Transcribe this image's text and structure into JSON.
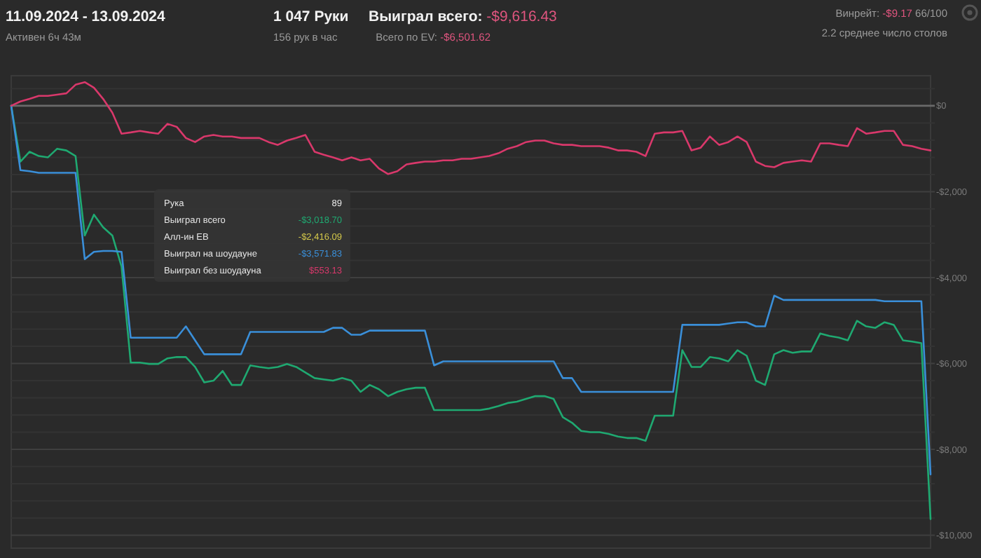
{
  "chart_data": {
    "type": "line",
    "title": "11.09.2024 - 13.09.2024",
    "subtitle": "Активен 6ч 43м",
    "annotations": [
      "1 047 Руки",
      "156 рук в час",
      "Выиграл всего: -$9,616.43",
      "Всего по EV: -$6,501.62",
      "Винрейт: -$9.17 66/100",
      "2.2 среднее число столов",
      "Рука",
      "89",
      "Выиграл всего",
      "-$3,018.70",
      "Алл-ин ЕВ",
      "-$2,416.09",
      "Выиграл на шоудауне",
      "-$3,571.83",
      "Выиграл без шоудауна",
      "$553.13"
    ],
    "categories": [
      null,
      null,
      null,
      null,
      null,
      null,
      null,
      null,
      null,
      null,
      null,
      null,
      null,
      null,
      null,
      null,
      null,
      null,
      null,
      null,
      null,
      null,
      null,
      null,
      null,
      null,
      null,
      null,
      null,
      null,
      null,
      null,
      null,
      null,
      null,
      null,
      null,
      null,
      null,
      null,
      null,
      null,
      null,
      null,
      null,
      null,
      null,
      null,
      null,
      null,
      null,
      null,
      null,
      null,
      null,
      null,
      null,
      null,
      null,
      null,
      null,
      null,
      null,
      null,
      null,
      null,
      null,
      null,
      null,
      null,
      null,
      null,
      null,
      null,
      null,
      null,
      null,
      null,
      null,
      null,
      null,
      null,
      null,
      null,
      null,
      null,
      null,
      null,
      null,
      null,
      null,
      null,
      null,
      null,
      null,
      null,
      null,
      null,
      null,
      null,
      null
    ],
    "series": [
      {
        "color": "#1fa971",
        "values": [
          0,
          -1300,
          -1070,
          -1170,
          -1200,
          -1000,
          -1040,
          -1170,
          -3020,
          -2535,
          -2830,
          -3020,
          -3740,
          -5980,
          -5980,
          -6010,
          -6010,
          -5880,
          -5850,
          -5850,
          -6080,
          -6440,
          -6400,
          -6175,
          -6500,
          -6500,
          -6045,
          -6080,
          -6110,
          -6080,
          -6010,
          -6080,
          -6210,
          -6340,
          -6370,
          -6400,
          -6340,
          -6400,
          -6660,
          -6500,
          -6600,
          -6760,
          -6660,
          -6600,
          -6565,
          -6565,
          -7085,
          -7085,
          -7085,
          -7085,
          -7085,
          -7085,
          -7050,
          -6990,
          -6920,
          -6890,
          -6825,
          -6760,
          -6760,
          -6825,
          -7250,
          -7380,
          -7570,
          -7600,
          -7600,
          -7640,
          -7700,
          -7735,
          -7735,
          -7800,
          -7215,
          -7215,
          -7215,
          -5690,
          -6080,
          -6080,
          -5850,
          -5880,
          -5950,
          -5690,
          -5820,
          -6400,
          -6500,
          -5785,
          -5690,
          -5750,
          -5720,
          -5720,
          -5300,
          -5360,
          -5395,
          -5460,
          -5005,
          -5135,
          -5170,
          -5040,
          -5100,
          -5460,
          -5490,
          -5525,
          -9620
        ]
      },
      {
        "color": "#3a8fd9",
        "values": [
          0,
          -1500,
          -1525,
          -1560,
          -1560,
          -1560,
          -1560,
          -1560,
          -3570,
          -3400,
          -3380,
          -3380,
          -3400,
          -5400,
          -5400,
          -5400,
          -5400,
          -5400,
          -5400,
          -5135,
          -5460,
          -5785,
          -5785,
          -5785,
          -5785,
          -5785,
          -5265,
          -5265,
          -5265,
          -5265,
          -5265,
          -5265,
          -5265,
          -5265,
          -5265,
          -5170,
          -5170,
          -5330,
          -5330,
          -5235,
          -5235,
          -5235,
          -5235,
          -5235,
          -5235,
          -5235,
          -6045,
          -5950,
          -5950,
          -5950,
          -5950,
          -5950,
          -5950,
          -5950,
          -5950,
          -5950,
          -5950,
          -5950,
          -5950,
          -5950,
          -6340,
          -6340,
          -6660,
          -6660,
          -6660,
          -6660,
          -6660,
          -6660,
          -6660,
          -6660,
          -6660,
          -6660,
          -6660,
          -5100,
          -5100,
          -5100,
          -5100,
          -5100,
          -5070,
          -5040,
          -5040,
          -5135,
          -5135,
          -4420,
          -4520,
          -4520,
          -4520,
          -4520,
          -4520,
          -4520,
          -4520,
          -4520,
          -4520,
          -4520,
          -4520,
          -4550,
          -4550,
          -4550,
          -4550,
          -4550,
          -8580
        ]
      },
      {
        "color": "#d9386b",
        "values": [
          0,
          100,
          160,
          230,
          230,
          260,
          290,
          490,
          550,
          420,
          160,
          -160,
          -650,
          -620,
          -585,
          -620,
          -650,
          -420,
          -490,
          -750,
          -845,
          -715,
          -680,
          -715,
          -715,
          -750,
          -750,
          -750,
          -845,
          -910,
          -810,
          -750,
          -680,
          -1070,
          -1140,
          -1200,
          -1270,
          -1200,
          -1270,
          -1235,
          -1460,
          -1590,
          -1525,
          -1365,
          -1330,
          -1300,
          -1300,
          -1270,
          -1270,
          -1235,
          -1235,
          -1200,
          -1170,
          -1105,
          -1000,
          -940,
          -845,
          -810,
          -810,
          -875,
          -910,
          -910,
          -940,
          -940,
          -940,
          -975,
          -1040,
          -1040,
          -1070,
          -1170,
          -650,
          -620,
          -620,
          -585,
          -1040,
          -975,
          -715,
          -910,
          -845,
          -715,
          -845,
          -1300,
          -1400,
          -1430,
          -1330,
          -1300,
          -1270,
          -1300,
          -875,
          -875,
          -910,
          -940,
          -520,
          -650,
          -620,
          -585,
          -585,
          -910,
          -940,
          -1000,
          -1040
        ]
      }
    ],
    "ylim": [
      -10300,
      700
    ],
    "yticks": [
      {
        "value": 400,
        "label": null
      },
      {
        "value": 0,
        "label": "$0"
      },
      {
        "value": -400,
        "label": null
      },
      {
        "value": -800,
        "label": null
      },
      {
        "value": -1200,
        "label": null
      },
      {
        "value": -1600,
        "label": null
      },
      {
        "value": -2000,
        "label": "-$2,000"
      },
      {
        "value": -2400,
        "label": null
      },
      {
        "value": -2800,
        "label": null
      },
      {
        "value": -3200,
        "label": null
      },
      {
        "value": -3600,
        "label": null
      },
      {
        "value": -4000,
        "label": "-$4,000"
      },
      {
        "value": -4400,
        "label": null
      },
      {
        "value": -4800,
        "label": null
      },
      {
        "value": -5200,
        "label": null
      },
      {
        "value": -5600,
        "label": null
      },
      {
        "value": -6000,
        "label": "-$6,000"
      },
      {
        "value": -6400,
        "label": null
      },
      {
        "value": -6800,
        "label": null
      },
      {
        "value": -7200,
        "label": null
      },
      {
        "value": -7600,
        "label": null
      },
      {
        "value": -8000,
        "label": "-$8,000"
      },
      {
        "value": -8400,
        "label": null
      },
      {
        "value": -8800,
        "label": null
      },
      {
        "value": -9200,
        "label": null
      },
      {
        "value": -9600,
        "label": null
      },
      {
        "value": -10000,
        "label": "-$10,000"
      }
    ],
    "tick_labels": "y",
    "grid": "y"
  }
}
